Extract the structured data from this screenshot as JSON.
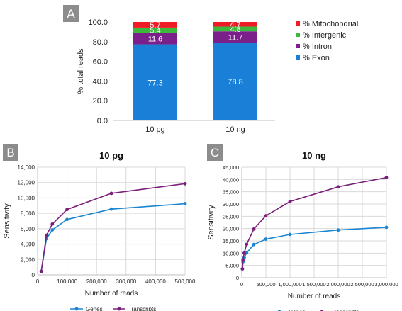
{
  "panels": {
    "a_label": "A",
    "b_label": "B",
    "c_label": "C"
  },
  "colors": {
    "mitochondrial": "#ee1c25",
    "intergenic": "#3cb83c",
    "intron": "#7b1f8a",
    "exon": "#1a7fd6",
    "genes": "#1a86d0",
    "transcripts": "#7b1f7b",
    "panel_label_bg": "#8c8c8c",
    "grid": "#d9d9d9"
  },
  "chart_data": [
    {
      "type": "bar",
      "stacked": true,
      "title": "",
      "xlabel": "",
      "ylabel": "% total reads",
      "categories": [
        "10 pg",
        "10 ng"
      ],
      "ylim": [
        0,
        100
      ],
      "yticks": [
        "0.0",
        "20.0",
        "40.0",
        "60.0",
        "80.0",
        "100.0"
      ],
      "series": [
        {
          "name": "% Exon",
          "values": [
            77.3,
            78.8
          ],
          "labels": [
            "77.3",
            "78.8"
          ]
        },
        {
          "name": "% Intron",
          "values": [
            11.6,
            11.7
          ],
          "labels": [
            "11.6",
            "11.7"
          ]
        },
        {
          "name": "% Intergenic",
          "values": [
            5.4,
            4.8
          ],
          "labels": [
            "5.4",
            "4.8"
          ]
        },
        {
          "name": "% Mitochondrial",
          "values": [
            5.7,
            4.7
          ],
          "labels": [
            "5.7",
            "4.7"
          ]
        }
      ],
      "legend": [
        "% Mitochondrial",
        "% Intergenic",
        "% Intron",
        "% Exon"
      ],
      "legend_position": "right",
      "grid": false
    },
    {
      "type": "line",
      "title": "10 pg",
      "xlabel": "Number of reads",
      "ylabel": "Sensitivity",
      "xlim": [
        0,
        500000
      ],
      "ylim": [
        0,
        14000
      ],
      "xticks": [
        "0",
        "100,000",
        "200,000",
        "300,000",
        "400,000",
        "500,000"
      ],
      "yticks": [
        "0",
        "2,000",
        "4,000",
        "6,000",
        "8,000",
        "10,000",
        "12,000",
        "14,000"
      ],
      "series": [
        {
          "name": "Genes",
          "x": [
            12500,
            30000,
            50000,
            100000,
            250000,
            500000
          ],
          "y": [
            450,
            4700,
            5850,
            7200,
            8550,
            9250
          ]
        },
        {
          "name": "Transcripts",
          "x": [
            12500,
            30000,
            50000,
            100000,
            250000,
            500000
          ],
          "y": [
            450,
            5150,
            6600,
            8500,
            10600,
            11850
          ]
        }
      ],
      "legend": [
        "Genes",
        "Transcripts"
      ],
      "legend_position": "bottom",
      "grid": true
    },
    {
      "type": "line",
      "title": "10 ng",
      "xlabel": "Number of reads",
      "ylabel": "Sensitivity",
      "xlim": [
        0,
        3000000
      ],
      "ylim": [
        0,
        45000
      ],
      "xticks": [
        "0",
        "500,000",
        "1,000,000",
        "1,500,000",
        "2,000,000",
        "2,500,000",
        "3,000,000"
      ],
      "yticks": [
        "0",
        "5,000",
        "10,000",
        "15,000",
        "20,000",
        "25,000",
        "30,000",
        "35,000",
        "40,000",
        "45,000"
      ],
      "series": [
        {
          "name": "Genes",
          "x": [
            12500,
            25000,
            50000,
            100000,
            250000,
            500000,
            1000000,
            2000000,
            3000000
          ],
          "y": [
            3600,
            6500,
            8200,
            10100,
            13500,
            15700,
            17600,
            19400,
            20500
          ]
        },
        {
          "name": "Transcripts",
          "x": [
            12500,
            25000,
            50000,
            100000,
            250000,
            500000,
            1000000,
            2000000,
            3000000
          ],
          "y": [
            3600,
            7200,
            10000,
            13600,
            19800,
            25200,
            31000,
            37000,
            40800
          ]
        }
      ],
      "legend": [
        "Genes",
        "Transcripts"
      ],
      "legend_position": "bottom",
      "grid": true
    }
  ]
}
